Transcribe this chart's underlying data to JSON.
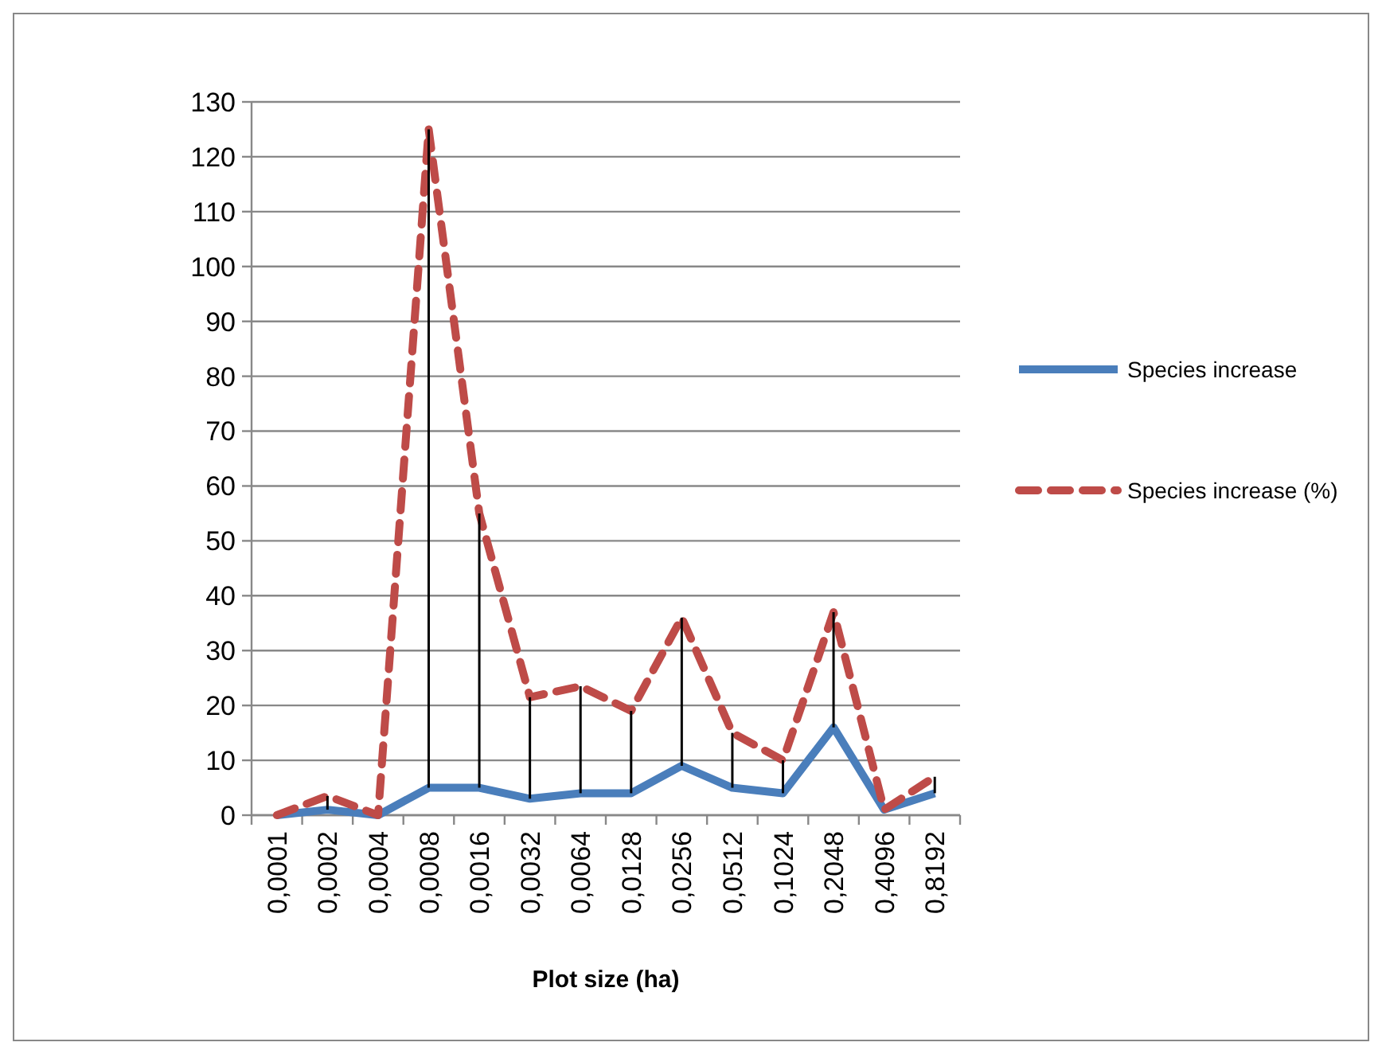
{
  "chart_data": {
    "type": "line",
    "xlabel": "Plot size (ha)",
    "categories": [
      "0,0001",
      "0,0002",
      "0,0004",
      "0,0008",
      "0,0016",
      "0,0032",
      "0,0064",
      "0,0128",
      "0,0256",
      "0,0512",
      "0,1024",
      "0,2048",
      "0,4096",
      "0,8192"
    ],
    "series": [
      {
        "name": "Species increase",
        "color": "#4a7ebb",
        "line_style": "solid",
        "values": [
          0,
          1,
          0,
          5,
          5,
          3,
          4,
          4,
          9,
          5,
          4,
          16,
          1,
          4
        ]
      },
      {
        "name": "Species increase (%)",
        "color": "#be4b48",
        "line_style": "dashed",
        "values": [
          0,
          3.5,
          0,
          125,
          55,
          21.5,
          23.5,
          19,
          36,
          15,
          10,
          37,
          1,
          7
        ],
        "errors": [
          null,
          [
            1,
            3.5
          ],
          null,
          [
            5,
            125
          ],
          [
            5,
            55
          ],
          [
            3,
            21.5
          ],
          [
            4,
            23.5
          ],
          [
            4,
            19
          ],
          [
            9,
            36
          ],
          [
            5,
            15
          ],
          [
            4,
            10
          ],
          [
            16,
            37
          ],
          null,
          [
            4,
            7
          ]
        ]
      }
    ],
    "ylim": [
      0,
      130
    ],
    "yticks": [
      0,
      10,
      20,
      30,
      40,
      50,
      60,
      70,
      80,
      90,
      100,
      110,
      120,
      130
    ],
    "grid": "y",
    "legend": "right",
    "marker": "none"
  }
}
